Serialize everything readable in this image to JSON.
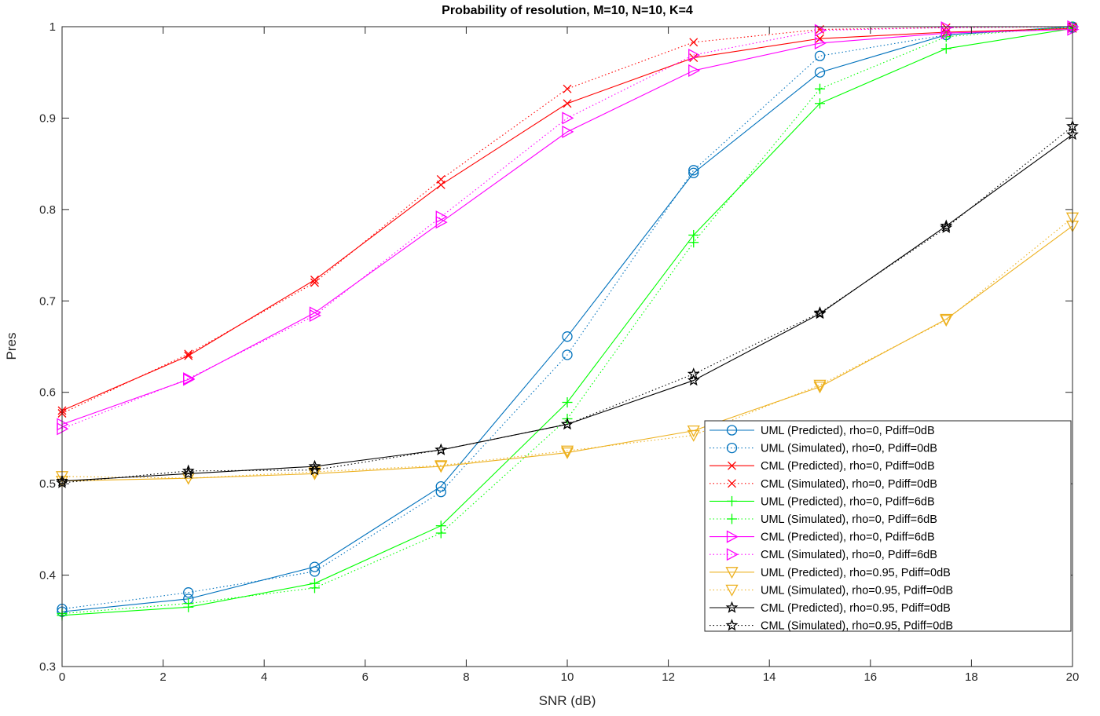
{
  "chart_data": {
    "type": "line",
    "title": "Probability of resolution, M=10, N=10, K=4",
    "xlabel": "SNR (dB)",
    "ylabel": "Pres",
    "xlim": [
      0,
      20
    ],
    "ylim": [
      0.3,
      1
    ],
    "xticks": [
      "0",
      "2",
      "4",
      "6",
      "8",
      "10",
      "12",
      "14",
      "16",
      "18",
      "20"
    ],
    "yticks": [
      "0.3",
      "0.4",
      "0.5",
      "0.6",
      "0.7",
      "0.8",
      "0.9",
      "1"
    ],
    "grid": false,
    "legend_position": "bottom-right",
    "x": [
      0,
      2.5,
      5,
      7.5,
      10,
      12.5,
      15,
      17.5,
      20
    ],
    "series": [
      {
        "name": "UML (Predicted), rho=0, Pdiff=0dB",
        "color": "#0072BD",
        "line": "solid",
        "marker": "circle",
        "values": [
          0.36,
          0.374,
          0.409,
          0.497,
          0.661,
          0.84,
          0.95,
          0.991,
          1.0
        ]
      },
      {
        "name": "UML (Simulated), rho=0, Pdiff=0dB",
        "color": "#0072BD",
        "line": "dotted",
        "marker": "circle",
        "values": [
          0.363,
          0.381,
          0.404,
          0.491,
          0.641,
          0.843,
          0.968,
          0.991,
          0.999
        ]
      },
      {
        "name": "CML (Predicted), rho=0, Pdiff=0dB",
        "color": "#FF0000",
        "line": "solid",
        "marker": "x",
        "values": [
          0.58,
          0.64,
          0.723,
          0.827,
          0.916,
          0.966,
          0.987,
          0.994,
          0.998
        ]
      },
      {
        "name": "CML (Simulated), rho=0, Pdiff=0dB",
        "color": "#FF0000",
        "line": "dotted",
        "marker": "x",
        "values": [
          0.577,
          0.642,
          0.72,
          0.833,
          0.932,
          0.983,
          0.997,
          0.999,
          1.0
        ]
      },
      {
        "name": "UML (Predicted), rho=0, Pdiff=6dB",
        "color": "#00FF00",
        "line": "solid",
        "marker": "plus",
        "values": [
          0.356,
          0.365,
          0.391,
          0.454,
          0.589,
          0.772,
          0.916,
          0.976,
          0.998
        ]
      },
      {
        "name": "UML (Simulated), rho=0, Pdiff=6dB",
        "color": "#00FF00",
        "line": "dotted",
        "marker": "plus",
        "values": [
          0.358,
          0.369,
          0.386,
          0.446,
          0.571,
          0.764,
          0.932,
          0.989,
          1.0
        ]
      },
      {
        "name": "CML (Predicted), rho=0, Pdiff=6dB",
        "color": "#FF00FF",
        "line": "solid",
        "marker": "triangle-right",
        "values": [
          0.565,
          0.614,
          0.687,
          0.786,
          0.885,
          0.952,
          0.982,
          0.993,
          0.997
        ]
      },
      {
        "name": "CML (Simulated), rho=0, Pdiff=6dB",
        "color": "#FF00FF",
        "line": "dotted",
        "marker": "triangle-right",
        "values": [
          0.56,
          0.615,
          0.684,
          0.792,
          0.9,
          0.969,
          0.996,
          0.999,
          1.0
        ]
      },
      {
        "name": "UML (Predicted), rho=0.95, Pdiff=0dB",
        "color": "#EDB120",
        "line": "solid",
        "marker": "triangle-down",
        "values": [
          0.503,
          0.506,
          0.511,
          0.519,
          0.534,
          0.558,
          0.606,
          0.68,
          0.782
        ]
      },
      {
        "name": "UML (Simulated), rho=0.95, Pdiff=0dB",
        "color": "#EDB120",
        "line": "dotted",
        "marker": "triangle-down",
        "values": [
          0.508,
          0.506,
          0.513,
          0.52,
          0.536,
          0.553,
          0.608,
          0.679,
          0.791
        ]
      },
      {
        "name": "CML (Predicted), rho=0.95, Pdiff=0dB",
        "color": "#000000",
        "line": "solid",
        "marker": "star",
        "values": [
          0.503,
          0.511,
          0.519,
          0.537,
          0.565,
          0.613,
          0.686,
          0.782,
          0.882
        ]
      },
      {
        "name": "CML (Simulated), rho=0.95, Pdiff=0dB",
        "color": "#000000",
        "line": "dotted",
        "marker": "star",
        "values": [
          0.501,
          0.514,
          0.515,
          0.537,
          0.565,
          0.62,
          0.687,
          0.78,
          0.891
        ]
      }
    ]
  }
}
